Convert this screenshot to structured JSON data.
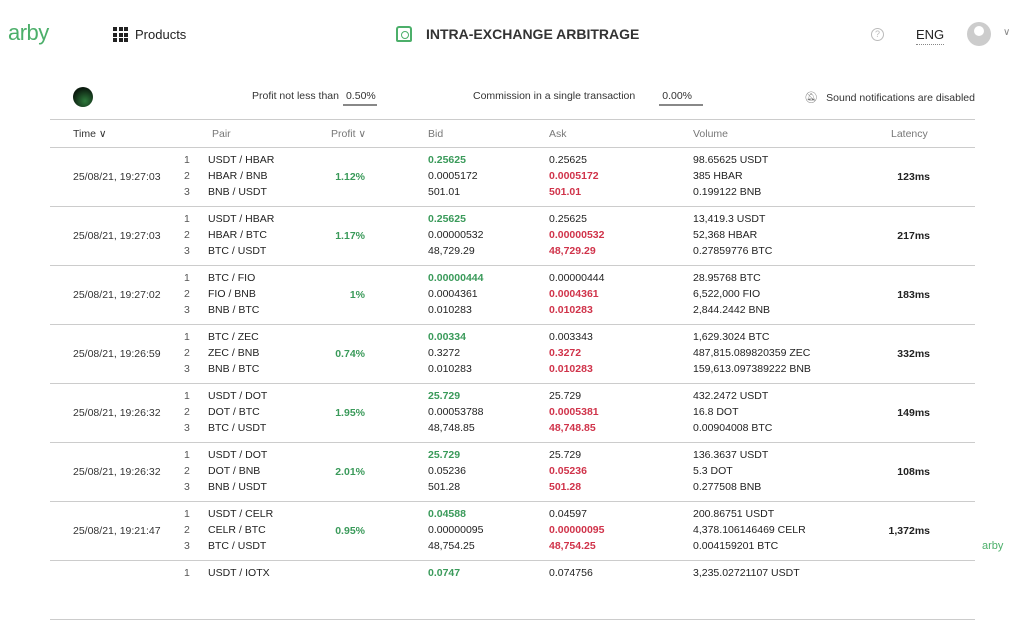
{
  "header": {
    "logo": "arby",
    "products": "Products",
    "title": "INTRA-EXCHANGE ARBITRAGE",
    "help": "?",
    "lang": "ENG",
    "chevron": "∨"
  },
  "filters": {
    "profit_label": "Profit not less than",
    "profit_value": "0.50%",
    "commission_label": "Commission in a single transaction",
    "commission_value": "0.00%",
    "sound": "Sound notifications are disabled"
  },
  "columns": {
    "time": "Time ∨",
    "pair": "Pair",
    "profit": "Profit ∨",
    "bid": "Bid",
    "ask": "Ask",
    "volume": "Volume",
    "latency": "Latency"
  },
  "rows": [
    {
      "time": "25/08/21, 19:27:03",
      "profit": "1.12%",
      "latency": "123ms",
      "legs": [
        {
          "n": "1",
          "pair": "USDT / HBAR",
          "bid": "0.25625",
          "ask": "0.25625",
          "vol": "98.65625 USDT"
        },
        {
          "n": "2",
          "pair": "HBAR / BNB",
          "bid": "0.0005172",
          "ask": "0.0005172",
          "vol": "385 HBAR"
        },
        {
          "n": "3",
          "pair": "BNB / USDT",
          "bid": "501.01",
          "ask": "501.01",
          "vol": "0.199122 BNB"
        }
      ]
    },
    {
      "time": "25/08/21, 19:27:03",
      "profit": "1.17%",
      "latency": "217ms",
      "legs": [
        {
          "n": "1",
          "pair": "USDT / HBAR",
          "bid": "0.25625",
          "ask": "0.25625",
          "vol": "13,419.3 USDT"
        },
        {
          "n": "2",
          "pair": "HBAR / BTC",
          "bid": "0.00000532",
          "ask": "0.00000532",
          "vol": "52,368 HBAR"
        },
        {
          "n": "3",
          "pair": "BTC / USDT",
          "bid": "48,729.29",
          "ask": "48,729.29",
          "vol": "0.27859776 BTC"
        }
      ]
    },
    {
      "time": "25/08/21, 19:27:02",
      "profit": "1%",
      "latency": "183ms",
      "legs": [
        {
          "n": "1",
          "pair": "BTC / FIO",
          "bid": "0.00000444",
          "ask": "0.00000444",
          "vol": "28.95768 BTC"
        },
        {
          "n": "2",
          "pair": "FIO / BNB",
          "bid": "0.0004361",
          "ask": "0.0004361",
          "vol": "6,522,000 FIO"
        },
        {
          "n": "3",
          "pair": "BNB / BTC",
          "bid": "0.010283",
          "ask": "0.010283",
          "vol": "2,844.2442 BNB"
        }
      ]
    },
    {
      "time": "25/08/21, 19:26:59",
      "profit": "0.74%",
      "latency": "332ms",
      "legs": [
        {
          "n": "1",
          "pair": "BTC / ZEC",
          "bid": "0.00334",
          "ask": "0.003343",
          "vol": "1,629.3024 BTC"
        },
        {
          "n": "2",
          "pair": "ZEC / BNB",
          "bid": "0.3272",
          "ask": "0.3272",
          "vol": "487,815.089820359 ZEC"
        },
        {
          "n": "3",
          "pair": "BNB / BTC",
          "bid": "0.010283",
          "ask": "0.010283",
          "vol": "159,613.097389222 BNB"
        }
      ]
    },
    {
      "time": "25/08/21, 19:26:32",
      "profit": "1.95%",
      "latency": "149ms",
      "legs": [
        {
          "n": "1",
          "pair": "USDT / DOT",
          "bid": "25.729",
          "ask": "25.729",
          "vol": "432.2472 USDT"
        },
        {
          "n": "2",
          "pair": "DOT / BTC",
          "bid": "0.00053788",
          "ask": "0.0005381",
          "vol": "16.8 DOT"
        },
        {
          "n": "3",
          "pair": "BTC / USDT",
          "bid": "48,748.85",
          "ask": "48,748.85",
          "vol": "0.00904008 BTC"
        }
      ]
    },
    {
      "time": "25/08/21, 19:26:32",
      "profit": "2.01%",
      "latency": "108ms",
      "legs": [
        {
          "n": "1",
          "pair": "USDT / DOT",
          "bid": "25.729",
          "ask": "25.729",
          "vol": "136.3637 USDT"
        },
        {
          "n": "2",
          "pair": "DOT / BNB",
          "bid": "0.05236",
          "ask": "0.05236",
          "vol": "5.3 DOT"
        },
        {
          "n": "3",
          "pair": "BNB / USDT",
          "bid": "501.28",
          "ask": "501.28",
          "vol": "0.277508 BNB"
        }
      ]
    },
    {
      "time": "25/08/21, 19:21:47",
      "profit": "0.95%",
      "latency": "1,372ms",
      "legs": [
        {
          "n": "1",
          "pair": "USDT / CELR",
          "bid": "0.04588",
          "ask": "0.04597",
          "vol": "200.86751 USDT"
        },
        {
          "n": "2",
          "pair": "CELR / BTC",
          "bid": "0.00000095",
          "ask": "0.00000095",
          "vol": "4,378.106146469 CELR"
        },
        {
          "n": "3",
          "pair": "BTC / USDT",
          "bid": "48,754.25",
          "ask": "48,754.25",
          "vol": "0.004159201 BTC"
        }
      ]
    },
    {
      "time": "",
      "profit": "",
      "latency": "",
      "legs": [
        {
          "n": "1",
          "pair": "USDT / IOTX",
          "bid": "0.0747",
          "ask": "0.074756",
          "vol": "3,235.02721107 USDT"
        }
      ]
    }
  ],
  "watermark": "arby"
}
